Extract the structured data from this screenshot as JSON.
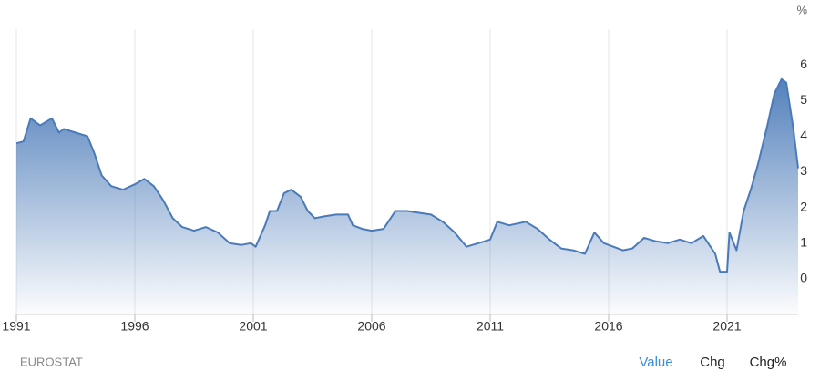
{
  "chart_data": {
    "type": "area",
    "y_unit": "%",
    "source": "EUROSTAT",
    "color": "#4a7ab8",
    "xlim": [
      1991,
      2024
    ],
    "xticks": [
      1991,
      1996,
      2001,
      2006,
      2011,
      2016,
      2021
    ],
    "ylim": [
      -1,
      7
    ],
    "yticks": [
      0,
      1,
      2,
      3,
      4,
      5,
      6
    ],
    "grid": "x",
    "x": [
      1991.0,
      1991.3,
      1991.6,
      1992.0,
      1992.5,
      1992.8,
      1993.0,
      1993.5,
      1994.0,
      1994.3,
      1994.6,
      1995.0,
      1995.5,
      1996.0,
      1996.4,
      1996.8,
      1997.2,
      1997.6,
      1998.0,
      1998.5,
      1999.0,
      1999.5,
      2000.0,
      2000.5,
      2000.9,
      2001.1,
      2001.5,
      2001.7,
      2002.0,
      2002.3,
      2002.6,
      2003.0,
      2003.3,
      2003.6,
      2004.0,
      2004.5,
      2005.0,
      2005.2,
      2005.6,
      2006.0,
      2006.5,
      2007.0,
      2007.5,
      2008.0,
      2008.5,
      2009.0,
      2009.5,
      2010.0,
      2010.5,
      2011.0,
      2011.3,
      2011.8,
      2012.5,
      2013.0,
      2013.5,
      2014.0,
      2014.5,
      2015.0,
      2015.4,
      2015.8,
      2016.2,
      2016.6,
      2017.0,
      2017.5,
      2018.0,
      2018.5,
      2019.0,
      2019.5,
      2020.0,
      2020.5,
      2020.7,
      2021.0,
      2021.1,
      2021.4,
      2021.7,
      2022.0,
      2022.3,
      2022.7,
      2023.0,
      2023.3,
      2023.5,
      2023.8,
      2024.0
    ],
    "values": [
      3.8,
      3.85,
      4.5,
      4.3,
      4.5,
      4.1,
      4.2,
      4.1,
      4.0,
      3.5,
      2.9,
      2.6,
      2.5,
      2.65,
      2.8,
      2.6,
      2.2,
      1.7,
      1.45,
      1.35,
      1.45,
      1.3,
      1.0,
      0.95,
      1.0,
      0.9,
      1.5,
      1.9,
      1.9,
      2.4,
      2.5,
      2.3,
      1.9,
      1.7,
      1.75,
      1.8,
      1.8,
      1.5,
      1.4,
      1.35,
      1.4,
      1.9,
      1.9,
      1.85,
      1.8,
      1.6,
      1.3,
      0.9,
      1.0,
      1.1,
      1.6,
      1.5,
      1.6,
      1.4,
      1.1,
      0.85,
      0.8,
      0.7,
      1.3,
      1.0,
      0.9,
      0.8,
      0.85,
      1.15,
      1.05,
      1.0,
      1.1,
      1.0,
      1.2,
      0.7,
      0.2,
      0.2,
      1.3,
      0.8,
      1.9,
      2.5,
      3.2,
      4.3,
      5.2,
      5.6,
      5.5,
      4.2,
      3.1
    ]
  },
  "controls": [
    "Value",
    "Chg",
    "Chg%"
  ]
}
